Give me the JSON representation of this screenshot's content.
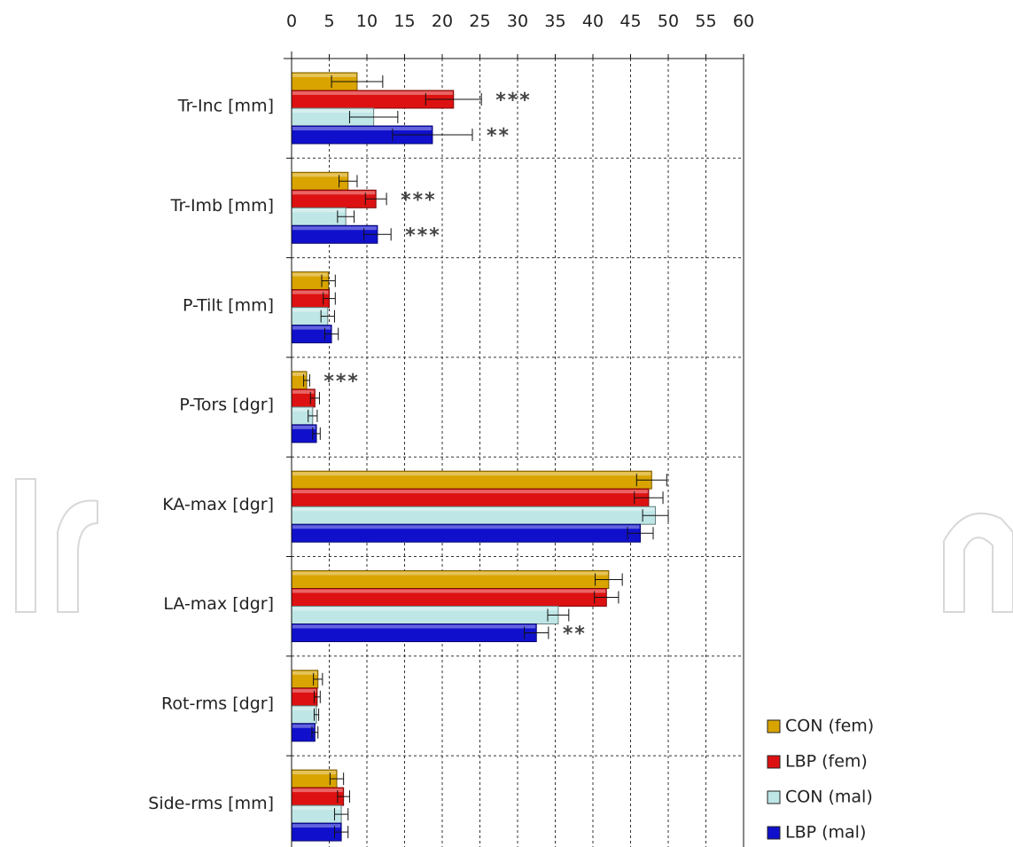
{
  "chart_data": {
    "type": "bar",
    "orientation": "horizontal",
    "categories": [
      "Tr-Inc [mm]",
      "Tr-Imb [mm]",
      "P-Tilt [mm]",
      "P-Tors [dgr]",
      "KA-max [dgr]",
      "LA-max [dgr]",
      "Rot-rms [dgr]",
      "Side-rms [mm]"
    ],
    "xlim": [
      0,
      60
    ],
    "xticks": [
      "0",
      "5",
      "10",
      "15",
      "20",
      "25",
      "30",
      "35",
      "40",
      "45",
      "50",
      "55",
      "60"
    ],
    "grid": true,
    "legend_position": "bottom-right",
    "series": [
      {
        "name": "CON (fem)",
        "color": "#d9a400",
        "values": [
          8.7,
          7.5,
          4.9,
          2.0,
          47.8,
          42.1,
          3.5,
          6.0
        ],
        "errors": [
          3.4,
          1.2,
          0.9,
          0.4,
          2.0,
          1.8,
          0.6,
          0.9
        ]
      },
      {
        "name": "LBP (fem)",
        "color": "#dd1111",
        "values": [
          21.5,
          11.2,
          5.0,
          3.1,
          47.4,
          41.8,
          3.4,
          6.9
        ],
        "errors": [
          3.7,
          1.4,
          0.8,
          0.6,
          1.9,
          1.6,
          0.4,
          0.8
        ]
      },
      {
        "name": "CON (mal)",
        "color": "#bfe6e6",
        "values": [
          10.9,
          7.2,
          4.8,
          2.8,
          48.3,
          35.4,
          3.3,
          6.6
        ],
        "errors": [
          3.2,
          1.1,
          0.9,
          0.6,
          1.7,
          1.4,
          0.3,
          0.9
        ]
      },
      {
        "name": "LBP (mal)",
        "color": "#1010cc",
        "values": [
          18.7,
          11.4,
          5.3,
          3.3,
          46.3,
          32.5,
          3.1,
          6.6
        ],
        "errors": [
          5.3,
          1.8,
          0.9,
          0.5,
          1.7,
          1.6,
          0.4,
          0.9
        ]
      }
    ],
    "annotations": [
      {
        "category": 0,
        "series": 1,
        "text": "***"
      },
      {
        "category": 0,
        "series": 3,
        "text": "**"
      },
      {
        "category": 1,
        "series": 1,
        "text": "***"
      },
      {
        "category": 1,
        "series": 3,
        "text": "***"
      },
      {
        "category": 3,
        "series": 0,
        "text": "***"
      },
      {
        "category": 5,
        "series": 3,
        "text": "**"
      }
    ]
  }
}
